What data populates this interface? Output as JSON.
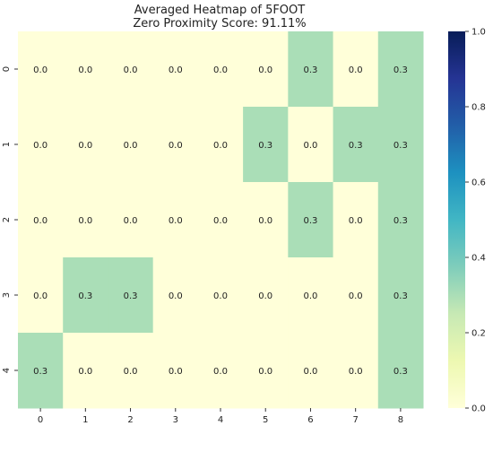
{
  "chart_data": {
    "type": "heatmap",
    "title": "Averaged Heatmap of 5FOOT",
    "subtitle": "Zero Proximity Score: 91.11%",
    "x_labels": [
      "0",
      "1",
      "2",
      "3",
      "4",
      "5",
      "6",
      "7",
      "8"
    ],
    "y_labels": [
      "0",
      "1",
      "2",
      "3",
      "4"
    ],
    "values": [
      [
        0.0,
        0.0,
        0.0,
        0.0,
        0.0,
        0.0,
        0.3,
        0.0,
        0.3
      ],
      [
        0.0,
        0.0,
        0.0,
        0.0,
        0.0,
        0.3,
        0.0,
        0.3,
        0.3
      ],
      [
        0.0,
        0.0,
        0.0,
        0.0,
        0.0,
        0.0,
        0.3,
        0.0,
        0.3
      ],
      [
        0.0,
        0.3,
        0.3,
        0.0,
        0.0,
        0.0,
        0.0,
        0.0,
        0.3
      ],
      [
        0.3,
        0.0,
        0.0,
        0.0,
        0.0,
        0.0,
        0.0,
        0.0,
        0.3
      ]
    ],
    "colorbar": {
      "min": 0.0,
      "max": 1.0,
      "ticks": [
        "0.0",
        "0.2",
        "0.4",
        "0.6",
        "0.8",
        "1.0"
      ],
      "colormap": "YlGnBu",
      "colors": [
        "#ffffd9",
        "#edf8b1",
        "#c7e9b4",
        "#7fcdbb",
        "#41b6c4",
        "#1d91c0",
        "#225ea8",
        "#253494",
        "#081d58"
      ]
    },
    "grid": false
  }
}
